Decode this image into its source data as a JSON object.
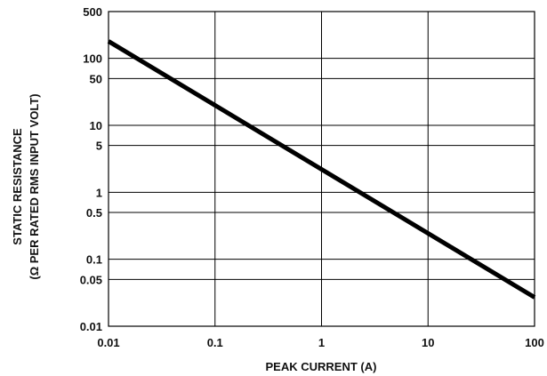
{
  "chart_data": {
    "type": "line",
    "x_scale": "log",
    "y_scale": "log",
    "xlabel": "PEAK CURRENT (A)",
    "ylabel_line1": "STATIC RESISTANCE",
    "ylabel_line2": "(Ω  PER RATED RMS INPUT VOLT)",
    "xlim": [
      0.01,
      100
    ],
    "ylim": [
      0.01,
      500
    ],
    "x_ticks": [
      0.01,
      0.1,
      1,
      10,
      100
    ],
    "x_tick_labels": [
      "0.01",
      "0.1",
      "1",
      "10",
      "100"
    ],
    "y_ticks": [
      0.01,
      0.05,
      0.1,
      0.5,
      1,
      5,
      10,
      50,
      100,
      500
    ],
    "y_tick_labels": [
      "0.01",
      "0.05",
      "0.1",
      "0.5",
      "1",
      "5",
      "10",
      "50",
      "100",
      "500"
    ],
    "grid": true,
    "legend": "none",
    "line_color": "#000000",
    "series": [
      {
        "x": [
          0.01,
          100
        ],
        "y": [
          180,
          0.027
        ]
      }
    ]
  }
}
